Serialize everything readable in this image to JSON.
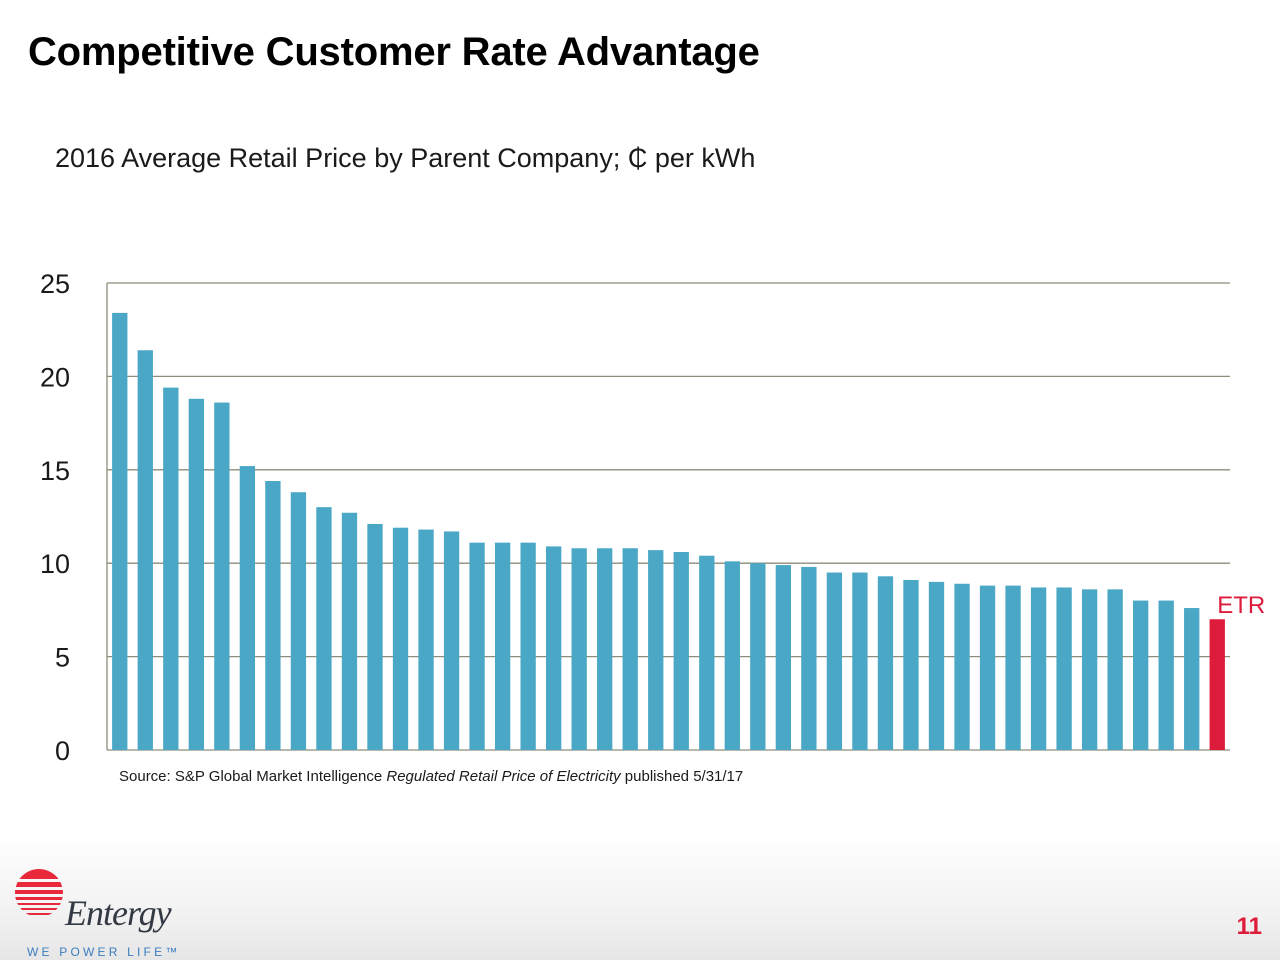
{
  "slide": {
    "title": "Competitive Customer Rate Advantage",
    "subtitle": "2016 Average Retail Price by Parent Company; ₵ per kWh",
    "source_prefix": "Source: S&P Global Market Intelligence ",
    "source_italic": "Regulated Retail Price of Electricity",
    "source_suffix": " published 5/31/17",
    "page_number": "11"
  },
  "logo": {
    "brand": "Entergy",
    "tagline": "WE POWER LIFE™",
    "icon": "entergy-sun-logo-icon",
    "color": "#e8283b"
  },
  "chart_data": {
    "type": "bar",
    "ylim": [
      0,
      25
    ],
    "yticks": [
      0,
      5,
      10,
      15,
      20,
      25
    ],
    "grid": true,
    "values": [
      23.4,
      21.4,
      19.4,
      18.8,
      18.6,
      15.2,
      14.4,
      13.8,
      13.0,
      12.7,
      12.1,
      11.9,
      11.8,
      11.7,
      11.1,
      11.1,
      11.1,
      10.9,
      10.8,
      10.8,
      10.8,
      10.7,
      10.6,
      10.4,
      10.1,
      10.0,
      9.9,
      9.8,
      9.5,
      9.5,
      9.3,
      9.1,
      9.0,
      8.9,
      8.8,
      8.8,
      8.7,
      8.7,
      8.6,
      8.6,
      8.0,
      8.0,
      7.6,
      7.0
    ],
    "highlight": {
      "index": 43,
      "label": "ETR",
      "color": "#dd1b3b"
    },
    "bar_color": "#4aa8c6"
  }
}
